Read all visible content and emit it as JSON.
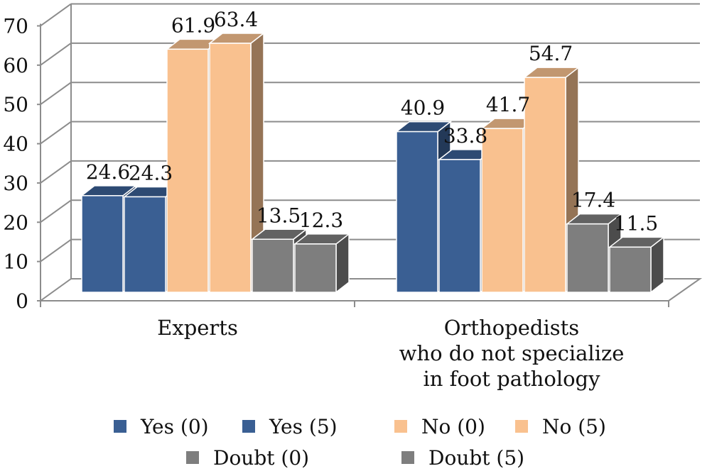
{
  "chart_data": {
    "type": "bar",
    "categories": [
      [
        "Experts"
      ],
      [
        "Orthopedists",
        "who do not specialize",
        "in foot pathology"
      ]
    ],
    "series": [
      {
        "name": "Yes (0)",
        "values": [
          24.6,
          40.9
        ],
        "color": "#3a5f93"
      },
      {
        "name": "Yes (5)",
        "values": [
          24.3,
          33.8
        ],
        "color": "#3a5f93"
      },
      {
        "name": "No (0)",
        "values": [
          61.9,
          41.7
        ],
        "color": "#f9c18f"
      },
      {
        "name": "No (5)",
        "values": [
          63.4,
          54.7
        ],
        "color": "#f9c18f"
      },
      {
        "name": "Doubt (0)",
        "values": [
          13.5,
          17.4
        ],
        "color": "#7e7e7e"
      },
      {
        "name": "Doubt (5)",
        "values": [
          12.3,
          11.5
        ],
        "color": "#7e7e7e"
      }
    ],
    "data_labels": [
      [
        "24.6",
        "40.9"
      ],
      [
        "24.3",
        "33.8"
      ],
      [
        "61.9",
        "41.7"
      ],
      [
        "63.4",
        "54.7"
      ],
      [
        "13.5",
        "17.4"
      ],
      [
        "12.3",
        "11.5"
      ]
    ],
    "yticks": [
      "0",
      "10",
      "20",
      "30",
      "40",
      "50",
      "60",
      "70"
    ],
    "ylim": [
      0,
      70
    ],
    "grid": true,
    "style": "3d-clustered-column",
    "legend_position": "bottom"
  }
}
